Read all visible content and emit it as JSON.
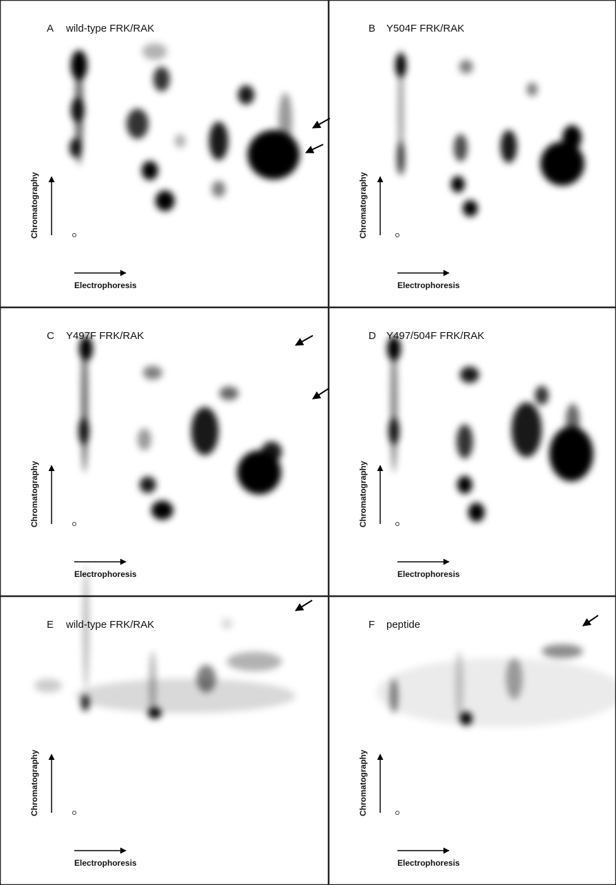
{
  "panels": [
    {
      "letter": "A",
      "title": "wild-type FRK/RAK"
    },
    {
      "letter": "B",
      "title": "Y504F FRK/RAK"
    },
    {
      "letter": "C",
      "title": "Y497F FRK/RAK"
    },
    {
      "letter": "D",
      "title": "Y497/504F FRK/RAK"
    },
    {
      "letter": "E",
      "title": "wild-type FRK/RAK"
    },
    {
      "letter": "F",
      "title": "peptide"
    }
  ],
  "y_axis_label": "Chromatography",
  "x_axis_label": "Electrophoresis"
}
